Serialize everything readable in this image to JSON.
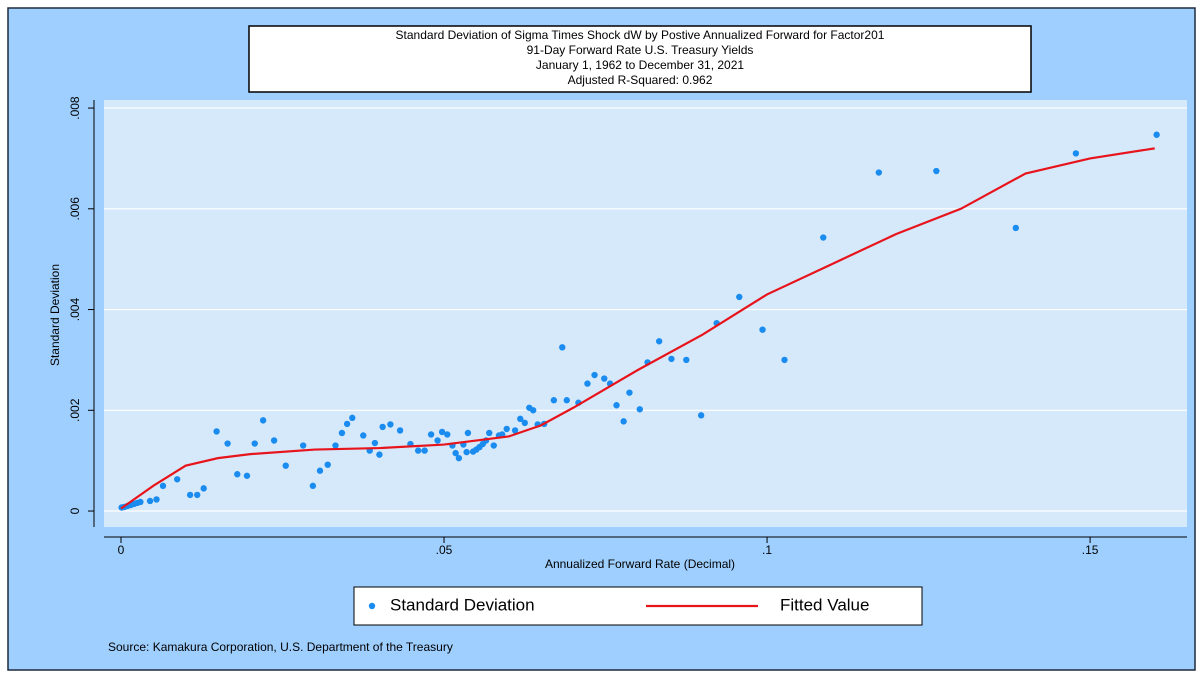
{
  "chart_data": {
    "type": "scatter",
    "title": [
      "Standard Deviation of Sigma Times Shock dW by Postive Annualized Forward for Factor201",
      "91-Day Forward Rate U.S. Treasury Yields",
      "January 1, 1962 to December 31, 2021",
      "Adjusted R-Squared: 0.962"
    ],
    "xlabel": "Annualized Forward Rate (Decimal)",
    "ylabel": "Standard Deviation",
    "source": "Source: Kamakura Corporation, U.S. Department of the Treasury",
    "xlim": [
      -0.00263,
      0.165
    ],
    "ylim": [
      -0.000317,
      0.00816
    ],
    "xticks": [
      0,
      {
        "value": 0.05,
        "label": ".05"
      },
      {
        "value": 0.1,
        "label": ".1"
      },
      {
        "value": 0.15,
        "label": ".15"
      }
    ],
    "yticks": [
      0,
      {
        "value": 0.002,
        "label": ".002"
      },
      {
        "value": 0.004,
        "label": ".004"
      },
      {
        "value": 0.006,
        "label": ".006"
      },
      {
        "value": 0.008,
        "label": ".008"
      }
    ],
    "grid": true,
    "legend": "bottom",
    "series": [
      {
        "name": "Standard Deviation",
        "mode": "markers",
        "color": "#1a8cf0",
        "x": [
          0.0001,
          0.0005,
          0.001,
          0.0015,
          0.002,
          0.0025,
          0.003,
          0.0045,
          0.0055,
          0.0065,
          0.0087,
          0.0107,
          0.0118,
          0.0128,
          0.0148,
          0.0165,
          0.018,
          0.0195,
          0.0207,
          0.022,
          0.0237,
          0.0255,
          0.0282,
          0.0297,
          0.0308,
          0.032,
          0.0332,
          0.0342,
          0.035,
          0.0358,
          0.0375,
          0.0385,
          0.0393,
          0.04,
          0.0405,
          0.0417,
          0.0432,
          0.0448,
          0.046,
          0.047,
          0.048,
          0.049,
          0.0497,
          0.0505,
          0.0513,
          0.0518,
          0.0523,
          0.053,
          0.0537,
          0.0535,
          0.0545,
          0.055,
          0.0555,
          0.056,
          0.0565,
          0.057,
          0.0577,
          0.0585,
          0.059,
          0.0597,
          0.061,
          0.0618,
          0.0625,
          0.0632,
          0.0638,
          0.0645,
          0.0655,
          0.067,
          0.0683,
          0.069,
          0.0708,
          0.0722,
          0.0733,
          0.0748,
          0.0757,
          0.0767,
          0.0778,
          0.0787,
          0.0803,
          0.0815,
          0.0833,
          0.0852,
          0.0875,
          0.0898,
          0.0922,
          0.0957,
          0.0993,
          0.1027,
          0.1087,
          0.1173,
          0.1262,
          0.1385,
          0.1478,
          0.1603
        ],
        "values": [
          7e-05,
          8e-05,
          0.0001,
          0.00012,
          0.00014,
          0.00016,
          0.00018,
          0.0002,
          0.00023,
          0.0005,
          0.00063,
          0.00032,
          0.00032,
          0.00045,
          0.00158,
          0.00134,
          0.00073,
          0.0007,
          0.00134,
          0.0018,
          0.0014,
          0.0009,
          0.0013,
          0.0005,
          0.0008,
          0.00092,
          0.0013,
          0.00155,
          0.00173,
          0.00185,
          0.0015,
          0.0012,
          0.00135,
          0.00112,
          0.00167,
          0.00172,
          0.0016,
          0.00133,
          0.0012,
          0.0012,
          0.00152,
          0.0014,
          0.00157,
          0.00152,
          0.0013,
          0.00115,
          0.00105,
          0.00132,
          0.00155,
          0.00117,
          0.00118,
          0.00122,
          0.00127,
          0.00133,
          0.0014,
          0.00155,
          0.0013,
          0.0015,
          0.00152,
          0.00163,
          0.0016,
          0.00183,
          0.00175,
          0.00205,
          0.002,
          0.00172,
          0.00173,
          0.0022,
          0.00325,
          0.0022,
          0.00215,
          0.00253,
          0.0027,
          0.00263,
          0.00253,
          0.0021,
          0.00178,
          0.00235,
          0.00202,
          0.00295,
          0.00337,
          0.00302,
          0.003,
          0.0019,
          0.00373,
          0.00425,
          0.0036,
          0.003,
          0.00543,
          0.00672,
          0.00675,
          0.00562,
          0.0071,
          0.00747
        ]
      },
      {
        "name": "Fitted Value",
        "mode": "line",
        "color": "#e8141c",
        "x": [
          0,
          0.005,
          0.01,
          0.015,
          0.02,
          0.03,
          0.04,
          0.05,
          0.06,
          0.065,
          0.07,
          0.08,
          0.09,
          0.1,
          0.11,
          0.12,
          0.13,
          0.14,
          0.15,
          0.16
        ],
        "values": [
          5e-05,
          0.0005,
          0.0009,
          0.00105,
          0.00113,
          0.00122,
          0.00125,
          0.00132,
          0.00148,
          0.0017,
          0.00205,
          0.0028,
          0.0035,
          0.0043,
          0.0049,
          0.0055,
          0.006,
          0.0067,
          0.007,
          0.0072
        ]
      }
    ]
  }
}
